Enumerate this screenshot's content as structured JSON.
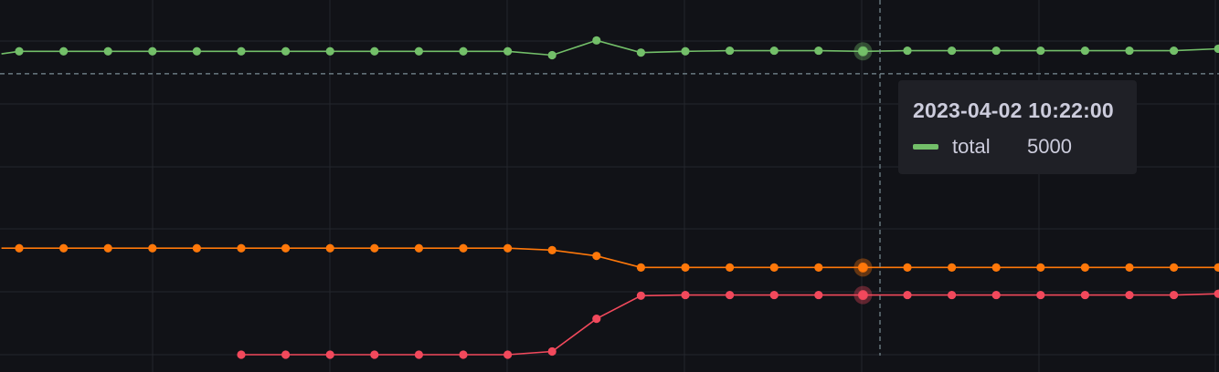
{
  "tooltip": {
    "time": "2023-04-02 10:22:00",
    "series": "total",
    "value": "5000",
    "color": "#73bf69"
  },
  "chart_data": {
    "type": "line",
    "xlim": [
      0,
      28
    ],
    "ylim": [
      0,
      5800
    ],
    "grid": true,
    "hover_index": 19,
    "threshold": 4650,
    "series": [
      {
        "name": "total",
        "color": "#73bf69",
        "x": [
          -0.4,
          0,
          1,
          2,
          3,
          4,
          5,
          6,
          7,
          8,
          9,
          10,
          11,
          12,
          13,
          14,
          15,
          16,
          17,
          18,
          19,
          20,
          21,
          22,
          23,
          24,
          25,
          26,
          27,
          27.4
        ],
        "values": [
          4960,
          5000,
          5000,
          5000,
          5000,
          5000,
          5000,
          5000,
          5000,
          5000,
          5000,
          5000,
          5000,
          4940,
          5170,
          4980,
          5000,
          5010,
          5010,
          5010,
          5000,
          5010,
          5010,
          5010,
          5010,
          5010,
          5010,
          5010,
          5040,
          5050
        ]
      },
      {
        "color": "#ff780a",
        "x": [
          -0.4,
          0,
          1,
          2,
          3,
          4,
          5,
          6,
          7,
          8,
          9,
          10,
          11,
          12,
          13,
          14,
          15,
          16,
          17,
          18,
          19,
          20,
          21,
          22,
          23,
          24,
          25,
          26,
          27,
          27.4
        ],
        "values": [
          1930,
          1930,
          1930,
          1930,
          1930,
          1930,
          1930,
          1930,
          1930,
          1930,
          1930,
          1930,
          1930,
          1900,
          1810,
          1630,
          1630,
          1630,
          1630,
          1630,
          1630,
          1630,
          1630,
          1630,
          1630,
          1630,
          1630,
          1630,
          1630,
          1630
        ]
      },
      {
        "color": "#f2495c",
        "x": [
          5,
          6,
          7,
          8,
          9,
          10,
          11,
          12,
          13,
          14,
          15,
          16,
          17,
          18,
          19,
          20,
          21,
          22,
          23,
          24,
          25,
          26,
          27,
          27.4
        ],
        "values": [
          270,
          270,
          270,
          270,
          270,
          270,
          270,
          320,
          830,
          1190,
          1200,
          1200,
          1200,
          1200,
          1200,
          1200,
          1200,
          1200,
          1200,
          1200,
          1200,
          1200,
          1220,
          1230
        ]
      }
    ]
  }
}
